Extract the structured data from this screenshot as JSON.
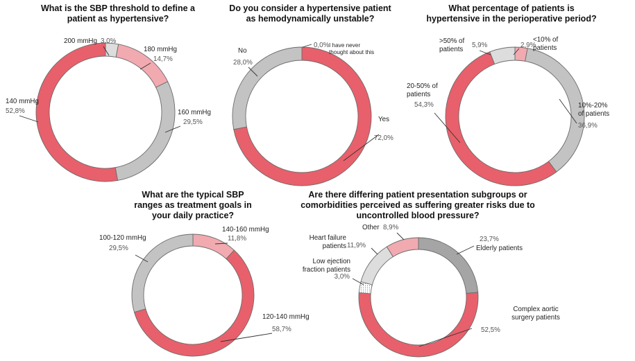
{
  "colors": {
    "red": "#e8606b",
    "pink": "#f1aab0",
    "grey": "#c3c3c3",
    "light_grey": "#dddddd",
    "dark_grey": "#a5a5a5",
    "dotted": "#f5f5f5"
  },
  "chart_data": [
    {
      "type": "pie",
      "title": [
        "What is the SBP threshold to define a",
        "patient as hypertensive?"
      ],
      "slices": [
        {
          "label": [
            "200 mmHg"
          ],
          "value": 3.0,
          "value_text": "3,0%",
          "color": "#dddddd"
        },
        {
          "label": [
            "180 mmHg"
          ],
          "value": 14.7,
          "value_text": "14,7%",
          "color": "#f1aab0"
        },
        {
          "label": [
            "160 mmHg"
          ],
          "value": 29.5,
          "value_text": "29,5%",
          "color": "#c3c3c3"
        },
        {
          "label": [
            "140 mmHg"
          ],
          "value": 52.8,
          "value_text": "52,8%",
          "color": "#e8606b"
        }
      ]
    },
    {
      "type": "pie",
      "title": [
        "Do you consider a hypertensive patient",
        "as hemodynamically unstable?"
      ],
      "slices": [
        {
          "label": [
            "I have never",
            "thought about this"
          ],
          "value": 0.0,
          "value_text": "0,0%",
          "color": "#dddddd"
        },
        {
          "label": [
            "Yes"
          ],
          "value": 72.0,
          "value_text": "72,0%",
          "color": "#e8606b"
        },
        {
          "label": [
            "No"
          ],
          "value": 28.0,
          "value_text": "28,0%",
          "color": "#c3c3c3"
        }
      ]
    },
    {
      "type": "pie",
      "title": [
        "What percentage of patients is",
        "hypertensive in the perioperative period?"
      ],
      "slices": [
        {
          "label": [
            "<10% of",
            "patients"
          ],
          "value": 2.9,
          "value_text": "2,9%",
          "color": "#f1aab0"
        },
        {
          "label": [
            "10%-20%",
            "of patients"
          ],
          "value": 36.9,
          "value_text": "36,9%",
          "color": "#c3c3c3"
        },
        {
          "label": [
            "20-50% of",
            "patients"
          ],
          "value": 54.3,
          "value_text": "54,3%",
          "color": "#e8606b"
        },
        {
          "label": [
            ">50% of",
            "patients"
          ],
          "value": 5.9,
          "value_text": "5,9%",
          "color": "#dddddd"
        }
      ]
    },
    {
      "type": "pie",
      "title": [
        "What are the typical SBP",
        "ranges as treatment goals in",
        "your daily practice?"
      ],
      "slices": [
        {
          "label": [
            "140-160 mmHg"
          ],
          "value": 11.8,
          "value_text": "11,8%",
          "color": "#f1aab0"
        },
        {
          "label": [
            "120-140 mmHg"
          ],
          "value": 58.7,
          "value_text": "58,7%",
          "color": "#e8606b"
        },
        {
          "label": [
            "100-120 mmHg"
          ],
          "value": 29.5,
          "value_text": "29,5%",
          "color": "#c3c3c3"
        }
      ]
    },
    {
      "type": "pie",
      "title": [
        "Are there differing patient presentation subgroups or",
        "comorbidities perceived as suffering greater risks due to",
        "uncontrolled blood pressure?"
      ],
      "slices": [
        {
          "label": [
            "Elderly patients"
          ],
          "value": 23.7,
          "value_text": "23,7%",
          "color": "#a5a5a5"
        },
        {
          "label": [
            "Complex aortic",
            "surgery patients"
          ],
          "value": 52.5,
          "value_text": "52,5%",
          "color": "#e8606b"
        },
        {
          "label": [
            "Low ejection",
            "fraction patients"
          ],
          "value": 3.0,
          "value_text": "3,0%",
          "color": "#f5f5f5"
        },
        {
          "label": [
            "Heart failure",
            "patients"
          ],
          "value": 11.9,
          "value_text": "11,9%",
          "color": "#dddddd"
        },
        {
          "label": [
            "Other"
          ],
          "value": 8.9,
          "value_text": "8,9%",
          "color": "#f1aab0"
        }
      ]
    }
  ]
}
